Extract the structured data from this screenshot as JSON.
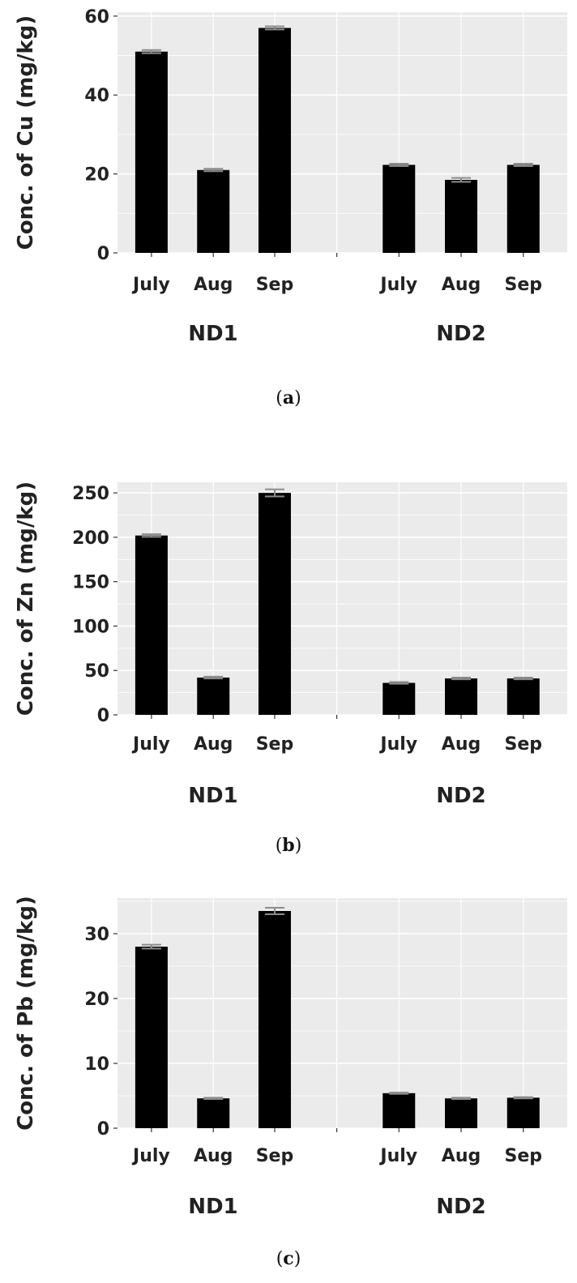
{
  "colors": {
    "panel_bg": "#ebebeb",
    "grid": "#ffffff",
    "bar": "#000000",
    "error_bar": "#8c8c8c",
    "text": "#222222"
  },
  "chart_data": [
    {
      "type": "bar",
      "caption_letter": "a",
      "ylabel": "Conc. of Cu (mg/kg)",
      "ylim": [
        0,
        61
      ],
      "yticks": [
        0,
        20,
        40,
        60
      ],
      "grid": true,
      "groups": [
        {
          "name": "ND1",
          "categories": [
            "July",
            "Aug",
            "Sep"
          ],
          "values": [
            51,
            21,
            57
          ],
          "errors": [
            0.4,
            0.3,
            0.4
          ]
        },
        {
          "name": "ND2",
          "categories": [
            "July",
            "Aug",
            "Sep"
          ],
          "values": [
            22.3,
            18.5,
            22.3
          ],
          "errors": [
            0.3,
            0.5,
            0.3
          ]
        }
      ]
    },
    {
      "type": "bar",
      "caption_letter": "b",
      "ylabel": "Conc. of Zn (mg/kg)",
      "ylim": [
        0,
        262
      ],
      "yticks": [
        0,
        50,
        100,
        150,
        200,
        250
      ],
      "grid": true,
      "groups": [
        {
          "name": "ND1",
          "categories": [
            "July",
            "Aug",
            "Sep"
          ],
          "values": [
            202,
            42,
            250
          ],
          "errors": [
            1.5,
            1,
            4
          ]
        },
        {
          "name": "ND2",
          "categories": [
            "July",
            "Aug",
            "Sep"
          ],
          "values": [
            36,
            41,
            41
          ],
          "errors": [
            1,
            1,
            1
          ]
        }
      ]
    },
    {
      "type": "bar",
      "caption_letter": "c",
      "ylabel": "Conc. of Pb (mg/kg)",
      "ylim": [
        0,
        35.5
      ],
      "yticks": [
        0,
        10,
        20,
        30
      ],
      "grid": true,
      "groups": [
        {
          "name": "ND1",
          "categories": [
            "July",
            "Aug",
            "Sep"
          ],
          "values": [
            28,
            4.6,
            33.5
          ],
          "errors": [
            0.3,
            0.1,
            0.5
          ]
        },
        {
          "name": "ND2",
          "categories": [
            "July",
            "Aug",
            "Sep"
          ],
          "values": [
            5.4,
            4.6,
            4.7
          ],
          "errors": [
            0.1,
            0.1,
            0.1
          ]
        }
      ]
    }
  ]
}
